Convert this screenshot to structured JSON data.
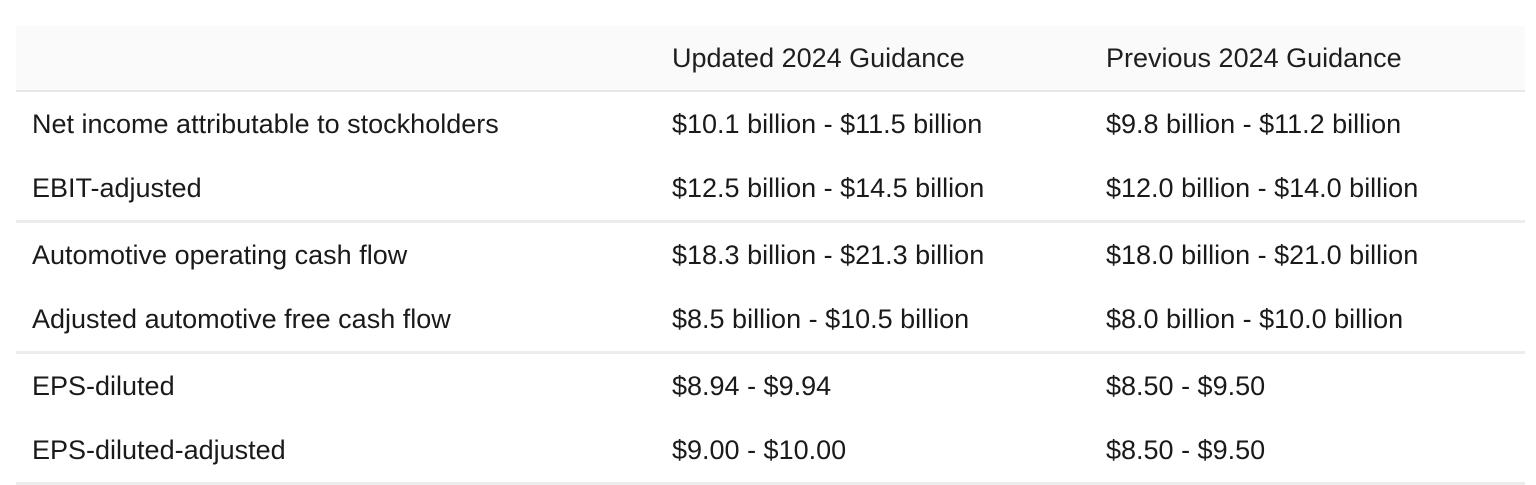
{
  "table": {
    "headers": [
      "",
      "Updated 2024 Guidance",
      "Previous 2024 Guidance"
    ],
    "groups": [
      {
        "rows": [
          {
            "label": "Net income attributable to stockholders",
            "updated": "$10.1 billion - $11.5 billion",
            "previous": "$9.8 billion - $11.2 billion"
          },
          {
            "label": "EBIT-adjusted",
            "updated": "$12.5 billion - $14.5 billion",
            "previous": "$12.0 billion - $14.0 billion"
          }
        ]
      },
      {
        "rows": [
          {
            "label": "Automotive operating cash flow",
            "updated": "$18.3 billion - $21.3 billion",
            "previous": "$18.0 billion - $21.0 billion"
          },
          {
            "label": "Adjusted automotive free cash flow",
            "updated": "$8.5 billion - $10.5 billion",
            "previous": "$8.0 billion - $10.0 billion"
          }
        ]
      },
      {
        "rows": [
          {
            "label": "EPS-diluted",
            "updated": "$8.94 - $9.94",
            "previous": "$8.50 - $9.50"
          },
          {
            "label": "EPS-diluted-adjusted",
            "updated": "$9.00 - $10.00",
            "previous": "$8.50 - $9.50"
          }
        ]
      }
    ]
  }
}
